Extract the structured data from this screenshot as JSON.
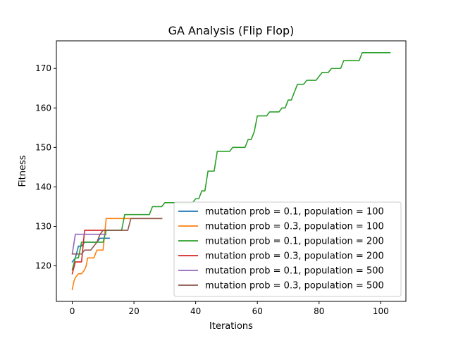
{
  "chart_data": {
    "type": "line",
    "title": "GA Analysis (Flip Flop)",
    "xlabel": "Iterations",
    "ylabel": "Fitness",
    "xlim": [
      -5.15,
      108.15
    ],
    "ylim": [
      111,
      177
    ],
    "xticks": [
      0,
      20,
      40,
      60,
      80,
      100
    ],
    "yticks": [
      120,
      130,
      140,
      150,
      160,
      170
    ],
    "grid": false,
    "legend_position": "bottom-right",
    "series": [
      {
        "name": "mutation prob = 0.1, population = 100",
        "color": "#1f77b4",
        "x": [
          0,
          1,
          2,
          3,
          4,
          5,
          6,
          7,
          8,
          9,
          10,
          11,
          12
        ],
        "y": [
          121,
          122,
          125,
          125,
          126,
          126,
          126,
          126,
          126,
          127,
          127,
          127,
          127
        ]
      },
      {
        "name": "mutation prob = 0.3, population = 100",
        "color": "#ff7f0e",
        "x": [
          0,
          0.5,
          1,
          1.5,
          2,
          3,
          3.5,
          4,
          4.5,
          5,
          6,
          7,
          7.5,
          8,
          9,
          10,
          10.5,
          11,
          12,
          13,
          14,
          15,
          16,
          17,
          18,
          19,
          20,
          21,
          22,
          23,
          24,
          25,
          26,
          27,
          28,
          29
        ],
        "y": [
          114,
          116,
          117,
          117.5,
          118,
          118,
          118.5,
          119,
          120,
          122,
          122,
          122,
          123,
          124,
          124,
          124,
          128,
          132,
          132,
          132,
          132,
          132,
          132,
          132,
          132,
          132,
          132,
          132,
          132,
          132,
          132,
          132,
          132,
          132,
          132,
          132
        ]
      },
      {
        "name": "mutation prob = 0.1, population = 200",
        "color": "#2ca02c",
        "x": [
          0,
          1,
          2,
          3,
          4,
          5,
          6,
          7,
          8,
          9,
          10,
          11,
          12,
          13,
          14,
          15,
          16,
          17,
          18,
          19,
          20,
          21,
          22,
          23,
          24,
          25,
          26,
          27,
          28,
          29,
          30,
          31,
          32,
          33,
          34,
          35,
          36,
          37,
          38,
          39,
          40,
          41,
          42,
          43,
          44,
          45,
          46,
          47,
          48,
          49,
          50,
          51,
          52,
          53,
          54,
          55,
          56,
          57,
          58,
          59,
          60,
          61,
          62,
          63,
          64,
          65,
          66,
          67,
          68,
          69,
          70,
          71,
          72,
          73,
          74,
          75,
          76,
          77,
          78,
          79,
          80,
          81,
          82,
          83,
          84,
          85,
          86,
          87,
          88,
          89,
          90,
          91,
          92,
          93,
          94,
          95,
          96,
          97,
          98,
          99,
          100,
          101,
          102,
          103
        ],
        "y": [
          119,
          122,
          122,
          126,
          126,
          126,
          126,
          126,
          126,
          126,
          126,
          129,
          129,
          129,
          129,
          129,
          129,
          133,
          133,
          133,
          133,
          133,
          133,
          133,
          133,
          133,
          135,
          135,
          135,
          135,
          136,
          136,
          136,
          136,
          136,
          136,
          136,
          136,
          136,
          136,
          137,
          137,
          139,
          139,
          144,
          144,
          144,
          149,
          149,
          149,
          149,
          149,
          150,
          150,
          150,
          150,
          150,
          152,
          152,
          154,
          158,
          158,
          158,
          158,
          159,
          159,
          159,
          159,
          160,
          160,
          162,
          162,
          164,
          166,
          166,
          166,
          167,
          167,
          167,
          167,
          168,
          169,
          169,
          169,
          170,
          170,
          170,
          170,
          172,
          172,
          172,
          172,
          172,
          172,
          174,
          174,
          174,
          174,
          174,
          174,
          174,
          174,
          174,
          174
        ]
      },
      {
        "name": "mutation prob = 0.3, population = 200",
        "color": "#d62728",
        "x": [
          0,
          1,
          2,
          3,
          4,
          5,
          6,
          7,
          8,
          9,
          10,
          11
        ],
        "y": [
          118,
          121,
          121,
          121,
          129,
          129,
          129,
          129,
          129,
          129,
          129,
          129
        ]
      },
      {
        "name": "mutation prob = 0.1, population = 500",
        "color": "#9467bd",
        "x": [
          0,
          1,
          2,
          3,
          4,
          5,
          6,
          7,
          8,
          9,
          10,
          11
        ],
        "y": [
          123,
          128,
          128,
          128,
          128,
          128,
          128,
          128,
          128,
          128,
          128,
          128
        ]
      },
      {
        "name": "mutation prob = 0.3, population = 500",
        "color": "#8c564b",
        "x": [
          0,
          1,
          2,
          3,
          4,
          5,
          6,
          7,
          8,
          9,
          10,
          11,
          12,
          13,
          14,
          15,
          16,
          17,
          18,
          19,
          20,
          21,
          22,
          23,
          24,
          25,
          26,
          27,
          28,
          29
        ],
        "y": [
          123,
          123,
          123,
          123,
          124,
          124,
          124,
          125,
          126,
          128,
          129,
          129,
          129,
          129,
          129,
          129,
          129,
          129,
          129,
          132,
          132,
          132,
          132,
          132,
          132,
          132,
          132,
          132,
          132,
          132
        ]
      }
    ]
  }
}
